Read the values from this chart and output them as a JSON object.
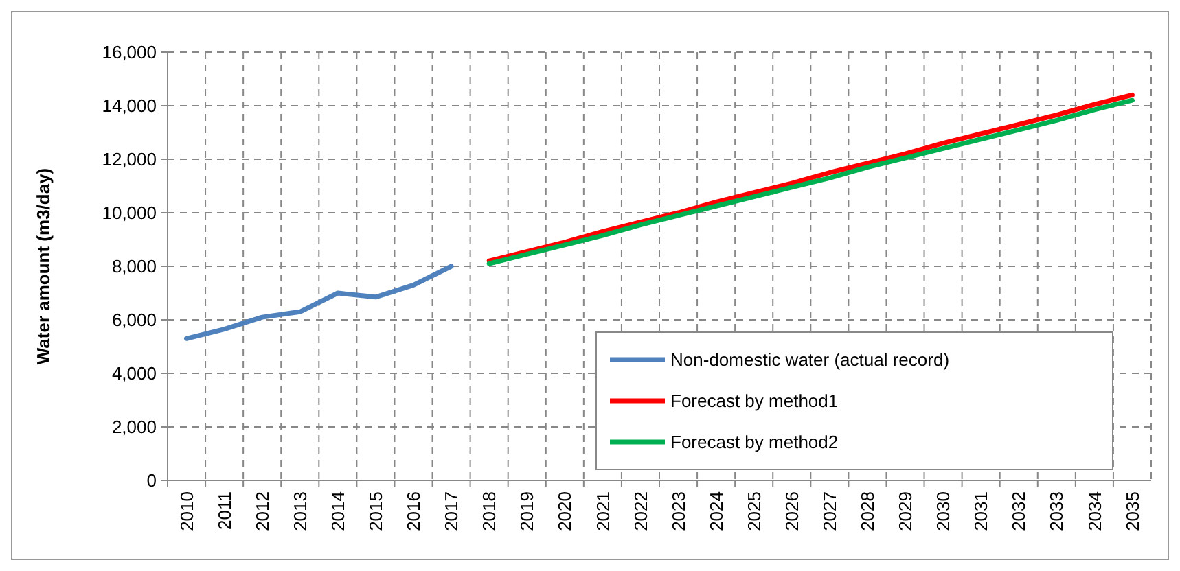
{
  "chart_data": {
    "type": "line",
    "ylabel": "Water amount (m3/day)",
    "categories": [
      "2010",
      "2011",
      "2012",
      "2013",
      "2014",
      "2015",
      "2016",
      "2017",
      "2018",
      "2019",
      "2020",
      "2021",
      "2022",
      "2023",
      "2024",
      "2025",
      "2026",
      "2027",
      "2028",
      "2029",
      "2030",
      "2031",
      "2032",
      "2033",
      "2034",
      "2035"
    ],
    "series": [
      {
        "name": "Non-domestic water (actual record)",
        "color": "#4f81bd",
        "values": [
          5300,
          5650,
          6100,
          6300,
          7000,
          6850,
          7300,
          8000,
          null,
          null,
          null,
          null,
          null,
          null,
          null,
          null,
          null,
          null,
          null,
          null,
          null,
          null,
          null,
          null,
          null,
          null
        ]
      },
      {
        "name": "Forecast by method1",
        "color": "#ff0000",
        "values": [
          null,
          null,
          null,
          null,
          null,
          null,
          null,
          null,
          8200,
          8550,
          8900,
          9300,
          9650,
          10000,
          10400,
          10750,
          11100,
          11500,
          11850,
          12200,
          12600,
          12950,
          13300,
          13650,
          14050,
          14400
        ]
      },
      {
        "name": "Forecast by method2",
        "color": "#00b050",
        "values": [
          null,
          null,
          null,
          null,
          null,
          null,
          null,
          null,
          8100,
          8450,
          8800,
          9150,
          9550,
          9900,
          10250,
          10600,
          10950,
          11300,
          11700,
          12050,
          12400,
          12750,
          13100,
          13450,
          13850,
          14200
        ]
      }
    ],
    "ylim": [
      0,
      16000
    ],
    "yticks": [
      {
        "value": 0,
        "label": "0"
      },
      {
        "value": 2000,
        "label": "2,000"
      },
      {
        "value": 4000,
        "label": "4,000"
      },
      {
        "value": 6000,
        "label": "6,000"
      },
      {
        "value": 8000,
        "label": "8,000"
      },
      {
        "value": 10000,
        "label": "10,000"
      },
      {
        "value": 12000,
        "label": "12,000"
      },
      {
        "value": 14000,
        "label": "14,000"
      },
      {
        "value": 16000,
        "label": "16,000"
      }
    ],
    "grid": true,
    "legend": "bottom right",
    "marker": "none",
    "line_style": "solid"
  }
}
